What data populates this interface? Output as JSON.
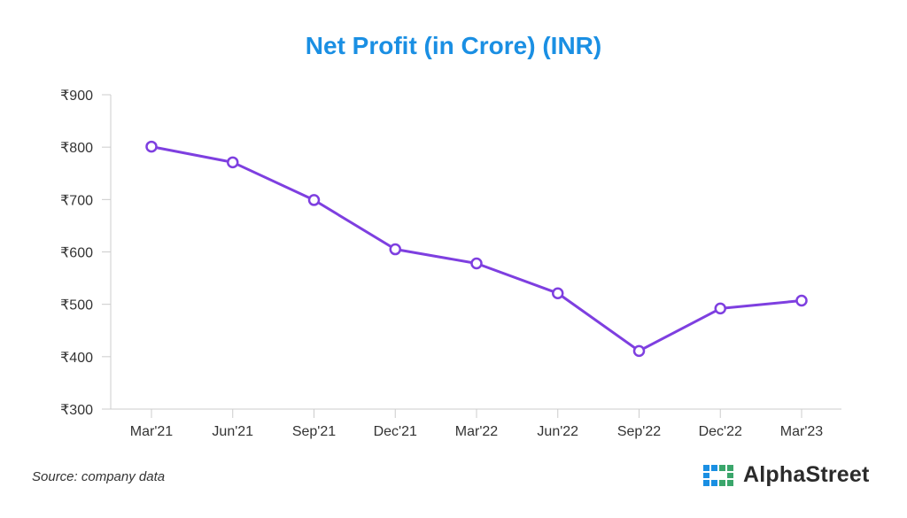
{
  "chart_data": {
    "type": "line",
    "title": "Net Profit (in Crore) (INR)",
    "xlabel": "",
    "ylabel": "",
    "categories": [
      "Mar'21",
      "Jun'21",
      "Sep'21",
      "Dec'21",
      "Mar'22",
      "Jun'22",
      "Sep'22",
      "Dec'22",
      "Mar'23"
    ],
    "series": [
      {
        "values": [
          801,
          771,
          699,
          605,
          578,
          521,
          411,
          492,
          507
        ]
      }
    ],
    "ylim": [
      300,
      900
    ],
    "yticks": [
      "₹300",
      "₹400",
      "₹500",
      "₹600",
      "₹700",
      "₹800",
      "₹900"
    ],
    "ytick_values": [
      300,
      400,
      500,
      600,
      700,
      800,
      900
    ],
    "grid": false,
    "legend": "none",
    "colors": {
      "title": "#1a8fe3",
      "line": "#7e3fe0",
      "axis": "#cccccc",
      "text": "#333333"
    }
  },
  "footer": {
    "source": "Source: company data",
    "brand": "AlphaStreet",
    "logo_icon": "alphastreet-logo-icon"
  }
}
